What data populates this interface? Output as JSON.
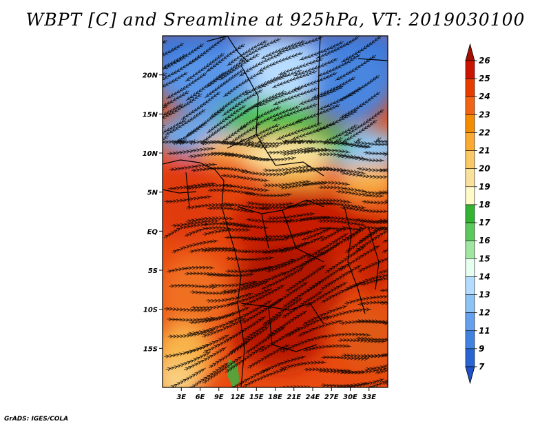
{
  "title": "WBPT [C] and Sreamline at 925hPa, VT: 2019030100",
  "credit": "GrADS: IGES/COLA",
  "map": {
    "lat_range": [
      -20,
      25
    ],
    "lon_range": [
      0,
      36
    ],
    "lat_ticks": [
      {
        "value": 20,
        "label": "20N"
      },
      {
        "value": 15,
        "label": "15N"
      },
      {
        "value": 10,
        "label": "10N"
      },
      {
        "value": 5,
        "label": "5N"
      },
      {
        "value": 0,
        "label": "EQ"
      },
      {
        "value": -5,
        "label": "5S"
      },
      {
        "value": -10,
        "label": "10S"
      },
      {
        "value": -15,
        "label": "15S"
      }
    ],
    "lon_ticks": [
      {
        "value": 3,
        "label": "3E"
      },
      {
        "value": 6,
        "label": "6E"
      },
      {
        "value": 9,
        "label": "9E"
      },
      {
        "value": 12,
        "label": "12E"
      },
      {
        "value": 15,
        "label": "15E"
      },
      {
        "value": 18,
        "label": "18E"
      },
      {
        "value": 21,
        "label": "21E"
      },
      {
        "value": 24,
        "label": "24E"
      },
      {
        "value": 27,
        "label": "27E"
      },
      {
        "value": 30,
        "label": "30E"
      },
      {
        "value": 33,
        "label": "33E"
      }
    ]
  },
  "colorbar": {
    "levels": [
      {
        "label": "26",
        "color": "#a50f00"
      },
      {
        "label": "25",
        "color": "#c81400"
      },
      {
        "label": "24",
        "color": "#e63c00"
      },
      {
        "label": "23",
        "color": "#f06414"
      },
      {
        "label": "22",
        "color": "#f58c00"
      },
      {
        "label": "21",
        "color": "#faaa32"
      },
      {
        "label": "20",
        "color": "#fac864"
      },
      {
        "label": "19",
        "color": "#fae19b"
      },
      {
        "label": "18",
        "color": "#fffac8"
      },
      {
        "label": "17",
        "color": "#32b432"
      },
      {
        "label": "16",
        "color": "#5ac85a"
      },
      {
        "label": "15",
        "color": "#a0e6a0"
      },
      {
        "label": "14",
        "color": "#e6fff0"
      },
      {
        "label": "13",
        "color": "#b4dcff"
      },
      {
        "label": "12",
        "color": "#8cc3f5"
      },
      {
        "label": "11",
        "color": "#64a0eb"
      },
      {
        "label": "9",
        "color": "#4182e1"
      },
      {
        "label": "7",
        "color": "#2864d2"
      }
    ],
    "bottom_arrow_color": "#1e50c8"
  }
}
